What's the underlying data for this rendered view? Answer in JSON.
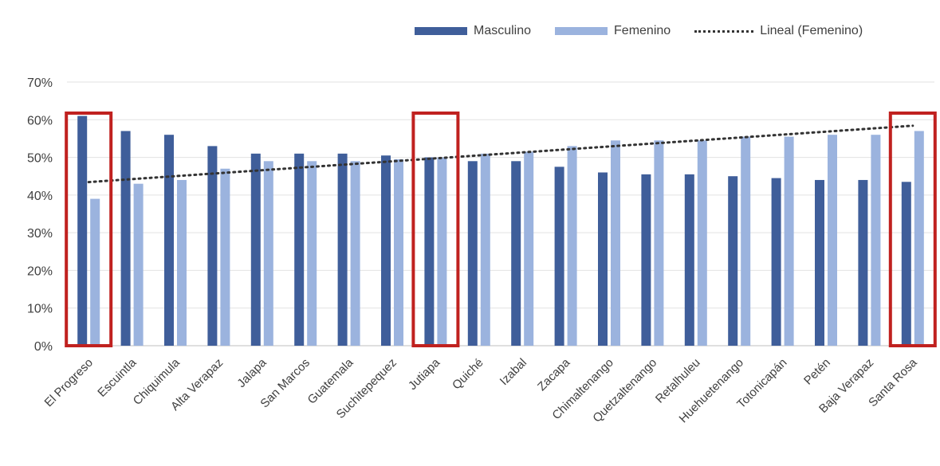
{
  "chart_data": {
    "type": "bar",
    "categories": [
      "El Progreso",
      "Escuintla",
      "Chiquimula",
      "Alta Verapaz",
      "Jalapa",
      "San Marcos",
      "Guatemala",
      "Suchitepequez",
      "Jutiapa",
      "Quiché",
      "Izabal",
      "Zacapa",
      "Chimaltenango",
      "Quetzaltenango",
      "Retalhuleu",
      "Huehuetenango",
      "Totonicapán",
      "Petén",
      "Baja Verapaz",
      "Santa Rosa"
    ],
    "series": [
      {
        "name": "Masculino",
        "color": "#3f5e9a",
        "values": [
          61,
          57,
          56,
          53,
          51,
          51,
          51,
          50.5,
          50,
          49,
          49,
          47.5,
          46,
          45.5,
          45.5,
          45,
          44.5,
          44,
          44,
          43.5
        ]
      },
      {
        "name": "Femenino",
        "color": "#9bb3de",
        "values": [
          39,
          43,
          44,
          47,
          49,
          49,
          49,
          49.5,
          50,
          51,
          51.5,
          53,
          54.5,
          54.5,
          54.5,
          55.5,
          55.5,
          56,
          56,
          57
        ]
      }
    ],
    "trendline": {
      "name": "Lineal (Femenino)",
      "series": "Femenino",
      "type": "linear",
      "color": "#333333"
    },
    "y_ticks": [
      "0%",
      "10%",
      "20%",
      "30%",
      "40%",
      "50%",
      "60%",
      "70%"
    ],
    "ylim": [
      0,
      70
    ],
    "grid": true,
    "legend_position": "top-right",
    "highlighted_categories": [
      "El Progreso",
      "Jutiapa",
      "Santa Rosa"
    ],
    "highlight_color": "#c0211f"
  }
}
